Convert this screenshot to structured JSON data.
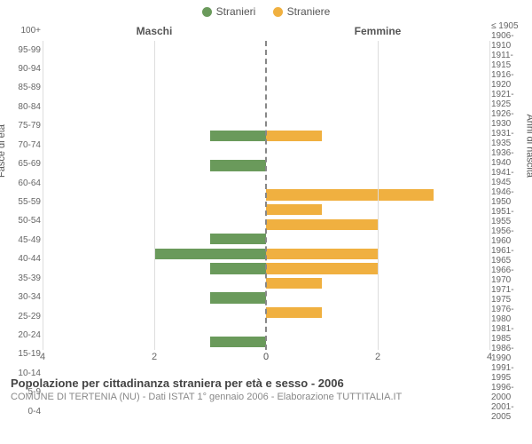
{
  "legend": {
    "male": {
      "label": "Stranieri",
      "color": "#6a9a5b"
    },
    "female": {
      "label": "Straniere",
      "color": "#f0b040"
    }
  },
  "header": {
    "left_title": "Maschi",
    "right_title": "Femmine"
  },
  "axes": {
    "left_axis_title": "Fasce di età",
    "right_axis_title": "Anni di nascita",
    "xmax": 4,
    "xtick_step": 2,
    "tick_color": "#666666",
    "grid_color": "#dddddd",
    "center_line_color": "#888888"
  },
  "age_labels": [
    "100+",
    "95-99",
    "90-94",
    "85-89",
    "80-84",
    "75-79",
    "70-74",
    "65-69",
    "60-64",
    "55-59",
    "50-54",
    "45-49",
    "40-44",
    "35-39",
    "30-34",
    "25-29",
    "20-24",
    "15-19",
    "10-14",
    "5-9",
    "0-4"
  ],
  "birth_labels": [
    "≤ 1905",
    "1906-1910",
    "1911-1915",
    "1916-1920",
    "1921-1925",
    "1926-1930",
    "1931-1935",
    "1936-1940",
    "1941-1945",
    "1946-1950",
    "1951-1955",
    "1956-1960",
    "1961-1965",
    "1966-1970",
    "1971-1975",
    "1976-1980",
    "1981-1985",
    "1986-1990",
    "1991-1995",
    "1996-2000",
    "2001-2005"
  ],
  "male_values": [
    0,
    0,
    0,
    0,
    0,
    0,
    1,
    0,
    1,
    0,
    0,
    0,
    0,
    1,
    2,
    1,
    0,
    1,
    0,
    0,
    1
  ],
  "female_values": [
    0,
    0,
    0,
    0,
    0,
    0,
    1,
    0,
    0,
    0,
    3,
    1,
    2,
    0,
    2,
    2,
    1,
    0,
    1,
    0,
    0
  ],
  "footer": {
    "title": "Popolazione per cittadinanza straniera per età e sesso - 2006",
    "subtitle": "COMUNE DI TERTENIA (NU) - Dati ISTAT 1° gennaio 2006 - Elaborazione TUTTITALIA.IT"
  },
  "style": {
    "background_color": "#ffffff",
    "text_color": "#555555",
    "title_fontsize": 13,
    "subtitle_fontsize": 11,
    "label_fontsize": 10,
    "legend_fontsize": 12
  }
}
